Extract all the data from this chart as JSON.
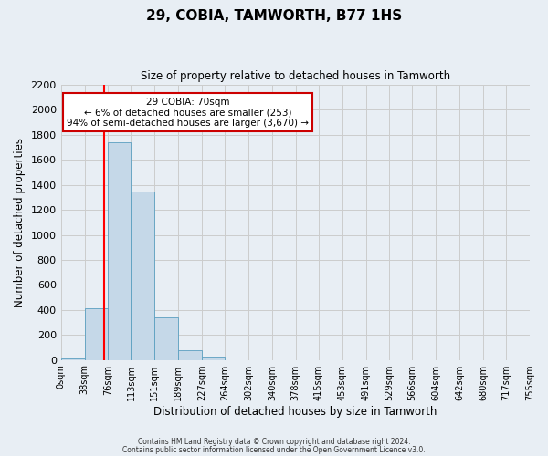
{
  "title": "29, COBIA, TAMWORTH, B77 1HS",
  "subtitle": "Size of property relative to detached houses in Tamworth",
  "xlabel": "Distribution of detached houses by size in Tamworth",
  "ylabel": "Number of detached properties",
  "footnote1": "Contains HM Land Registry data © Crown copyright and database right 2024.",
  "footnote2": "Contains public sector information licensed under the Open Government Licence v3.0.",
  "bin_labels": [
    "0sqm",
    "38sqm",
    "76sqm",
    "113sqm",
    "151sqm",
    "189sqm",
    "227sqm",
    "264sqm",
    "302sqm",
    "340sqm",
    "378sqm",
    "415sqm",
    "453sqm",
    "491sqm",
    "529sqm",
    "566sqm",
    "604sqm",
    "642sqm",
    "680sqm",
    "717sqm",
    "755sqm"
  ],
  "bar_values": [
    15,
    410,
    1740,
    1350,
    340,
    75,
    25,
    0,
    0,
    0,
    0,
    0,
    0,
    0,
    0,
    0,
    0,
    0,
    0,
    0
  ],
  "bin_edges": [
    0,
    38,
    76,
    113,
    151,
    189,
    227,
    264,
    302,
    340,
    378,
    415,
    453,
    491,
    529,
    566,
    604,
    642,
    680,
    717,
    755
  ],
  "bar_color": "#c5d8e8",
  "bar_edge_color": "#5a9fc0",
  "red_line_x": 70,
  "ylim": [
    0,
    2200
  ],
  "yticks": [
    0,
    200,
    400,
    600,
    800,
    1000,
    1200,
    1400,
    1600,
    1800,
    2000,
    2200
  ],
  "annotation_title": "29 COBIA: 70sqm",
  "annotation_line1": "← 6% of detached houses are smaller (253)",
  "annotation_line2": "94% of semi-detached houses are larger (3,670) →",
  "annotation_box_color": "#ffffff",
  "annotation_box_edge": "#cc0000",
  "grid_color": "#cccccc",
  "bg_color": "#e8eef4"
}
